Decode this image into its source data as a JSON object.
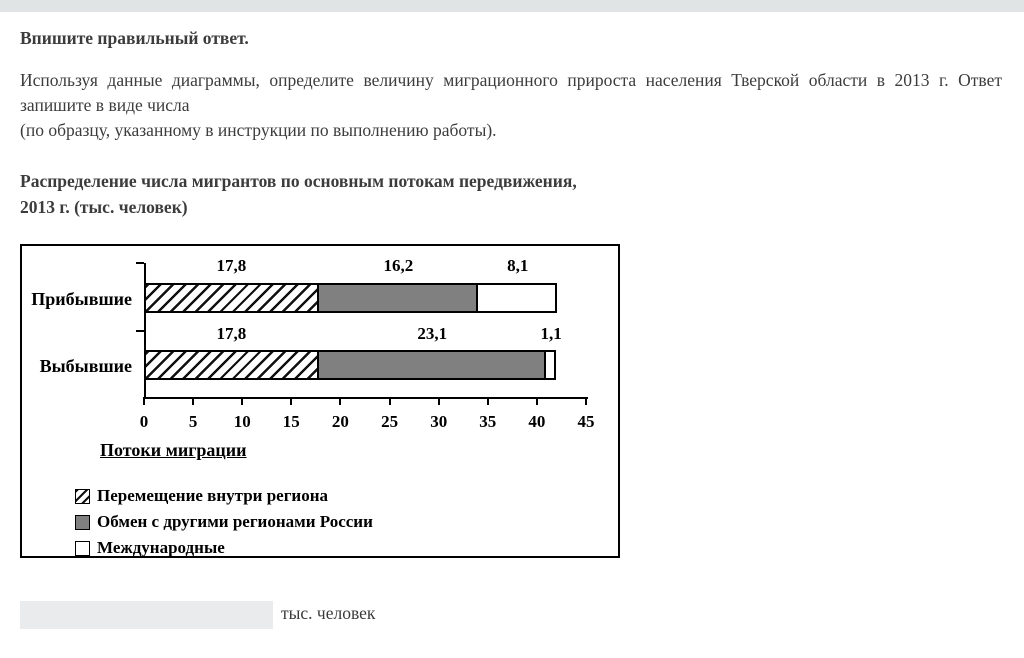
{
  "header": {
    "prompt": "Впишите правильный ответ."
  },
  "question": {
    "line1": "Используя данные диаграммы, определите величину миграционного прироста населения Тверской области в 2013 г. Ответ",
    "line2": "запишите в виде числа",
    "note": "(по образцу, указанному в инструкции по выполнению работы)."
  },
  "chart": {
    "title_line1": "Распределение числа мигрантов по основным потокам передвижения,",
    "title_line2": "2013 г. (тыс. человек)"
  },
  "chart_data": {
    "type": "bar",
    "orientation": "horizontal",
    "stacked": true,
    "title": "Распределение числа мигрантов по основным потокам передвижения, 2013 г. (тыс. человек)",
    "categories": [
      "Прибывшие",
      "Выбывшие"
    ],
    "series": [
      {
        "name": "Перемещение внутри региона",
        "style": "hatched",
        "values": [
          17.8,
          17.8
        ]
      },
      {
        "name": "Обмен с другими регионами России",
        "style": "gray",
        "values": [
          16.2,
          23.1
        ]
      },
      {
        "name": "Международные",
        "style": "white",
        "values": [
          8.1,
          1.1
        ]
      }
    ],
    "bar_labels": [
      [
        "17,8",
        "16,2",
        "8,1"
      ],
      [
        "17,8",
        "23,1",
        "1,1"
      ]
    ],
    "x_ticks": [
      0,
      5,
      10,
      15,
      20,
      25,
      30,
      35,
      40,
      45
    ],
    "xlim": [
      0,
      45
    ],
    "axis_label": "Потоки миграции",
    "legend_position": "bottom-left",
    "grid": false
  },
  "answer": {
    "value": "",
    "unit_label": "тыс. человек"
  },
  "colors": {
    "top_band": "#e1e4e5",
    "bar_gray": "#808080",
    "input_bg": "#e9ebec",
    "chart_border": "#000000",
    "text_color": "#3c3c3c"
  }
}
